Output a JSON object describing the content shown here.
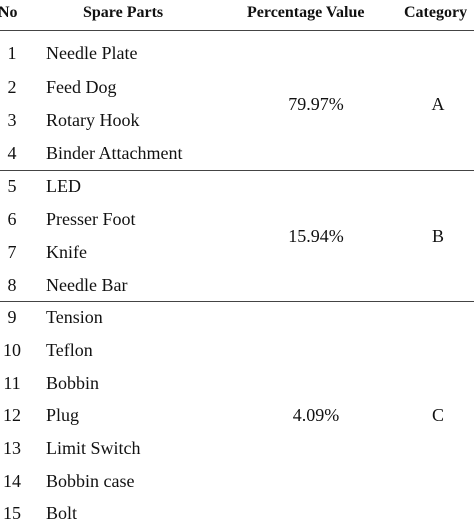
{
  "headers": {
    "no": "No",
    "part": "Spare Parts",
    "percentage": "Percentage Value",
    "category": "Category"
  },
  "groups": [
    {
      "percentage": "79.97%",
      "category": "A",
      "rows": [
        {
          "no": "1",
          "part": "Needle Plate"
        },
        {
          "no": "2",
          "part": "Feed Dog"
        },
        {
          "no": "3",
          "part": "Rotary Hook"
        },
        {
          "no": "4",
          "part": "Binder Attachment"
        }
      ]
    },
    {
      "percentage": "15.94%",
      "category": "B",
      "rows": [
        {
          "no": "5",
          "part": "LED"
        },
        {
          "no": "6",
          "part": "Presser Foot"
        },
        {
          "no": "7",
          "part": "Knife"
        },
        {
          "no": "8",
          "part": "Needle Bar"
        }
      ]
    },
    {
      "percentage": "4.09%",
      "category": "C",
      "rows": [
        {
          "no": "9",
          "part": "Tension"
        },
        {
          "no": "10",
          "part": "Teflon"
        },
        {
          "no": "11",
          "part": "Bobbin"
        },
        {
          "no": "12",
          "part": "Plug"
        },
        {
          "no": "13",
          "part": "Limit Switch"
        },
        {
          "no": "14",
          "part": "Bobbin case"
        },
        {
          "no": "15",
          "part": "Bolt"
        }
      ]
    }
  ]
}
